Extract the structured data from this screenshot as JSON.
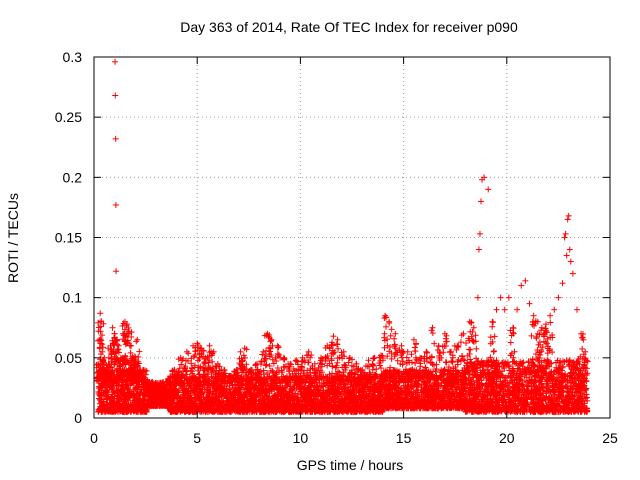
{
  "chart_data": {
    "type": "scatter",
    "title": "Day 363 of 2014, Rate Of TEC Index for receiver p090",
    "xlabel": "GPS time / hours",
    "ylabel": "ROTI / TECUs",
    "xlim": [
      0,
      25
    ],
    "ylim": [
      0,
      0.3
    ],
    "xticks": [
      0,
      5,
      10,
      15,
      20,
      25
    ],
    "yticks": [
      0,
      0.05,
      0.1,
      0.15,
      0.2,
      0.25,
      0.3
    ],
    "xtick_labels": [
      "0",
      "5",
      "10",
      "15",
      "20",
      "25"
    ],
    "ytick_labels": [
      "0",
      "0.05",
      "0.1",
      "0.15",
      "0.2",
      "0.25",
      "0.3"
    ],
    "grid": true,
    "marker": "+",
    "color": "#ff0000",
    "series": [
      {
        "name": "ROTI",
        "x": [
          0.2,
          0.3,
          0.35,
          0.4,
          0.5,
          0.6,
          0.7,
          0.8,
          0.9,
          1.0,
          1.02,
          1.03,
          1.05,
          1.06,
          1.07,
          1.1,
          1.2,
          1.3,
          1.4,
          1.5,
          1.6,
          1.7,
          1.8,
          1.9,
          2.0,
          2.1,
          2.2,
          2.4,
          2.6,
          2.8,
          3.0,
          3.3,
          3.6,
          3.9,
          4.2,
          4.5,
          4.8,
          5.0,
          5.2,
          5.4,
          5.6,
          5.8,
          6.0,
          6.3,
          6.6,
          6.9,
          7.1,
          7.3,
          7.6,
          7.9,
          8.2,
          8.4,
          8.6,
          8.9,
          9.2,
          9.5,
          9.8,
          10.1,
          10.4,
          10.7,
          11.0,
          11.3,
          11.6,
          11.8,
          12.1,
          12.4,
          12.7,
          13.0,
          13.3,
          13.6,
          13.9,
          14.1,
          14.3,
          14.6,
          14.9,
          15.2,
          15.5,
          15.8,
          16.1,
          16.4,
          16.7,
          17.0,
          17.3,
          17.6,
          17.9,
          18.2,
          18.4,
          18.6,
          18.65,
          18.7,
          18.75,
          18.8,
          18.9,
          19.1,
          19.3,
          19.5,
          19.7,
          19.9,
          20.1,
          20.3,
          20.5,
          20.7,
          20.9,
          21.1,
          21.3,
          21.5,
          21.7,
          21.9,
          22.1,
          22.3,
          22.5,
          22.7,
          22.8,
          22.85,
          22.9,
          22.95,
          23.0,
          23.05,
          23.1,
          23.2,
          23.4,
          23.6,
          23.8
        ],
        "y": [
          0.045,
          0.087,
          0.08,
          0.055,
          0.05,
          0.04,
          0.045,
          0.06,
          0.075,
          0.07,
          0.296,
          0.268,
          0.232,
          0.177,
          0.122,
          0.065,
          0.06,
          0.05,
          0.07,
          0.08,
          0.078,
          0.072,
          0.06,
          0.05,
          0.045,
          0.065,
          0.04,
          0.03,
          0.025,
          0.022,
          0.02,
          0.024,
          0.03,
          0.04,
          0.05,
          0.055,
          0.06,
          0.062,
          0.058,
          0.05,
          0.06,
          0.055,
          0.045,
          0.04,
          0.035,
          0.04,
          0.055,
          0.058,
          0.04,
          0.045,
          0.055,
          0.07,
          0.065,
          0.06,
          0.05,
          0.045,
          0.048,
          0.05,
          0.055,
          0.045,
          0.05,
          0.06,
          0.068,
          0.065,
          0.055,
          0.05,
          0.045,
          0.04,
          0.048,
          0.05,
          0.052,
          0.085,
          0.08,
          0.07,
          0.06,
          0.055,
          0.065,
          0.05,
          0.055,
          0.075,
          0.06,
          0.07,
          0.055,
          0.06,
          0.07,
          0.08,
          0.075,
          0.1,
          0.14,
          0.153,
          0.18,
          0.198,
          0.2,
          0.19,
          0.08,
          0.09,
          0.1,
          0.09,
          0.1,
          0.075,
          0.09,
          0.11,
          0.114,
          0.095,
          0.085,
          0.08,
          0.075,
          0.078,
          0.085,
          0.09,
          0.1,
          0.112,
          0.15,
          0.153,
          0.135,
          0.165,
          0.168,
          0.14,
          0.13,
          0.12,
          0.09,
          0.07,
          0.055
        ]
      }
    ],
    "noise_floor": {
      "segments": [
        {
          "x0": 0.2,
          "x1": 2.6,
          "ymin": 0.005,
          "ymax": 0.04
        },
        {
          "x0": 2.6,
          "x1": 3.6,
          "ymin": 0.01,
          "ymax": 0.028
        },
        {
          "x0": 3.6,
          "x1": 14.0,
          "ymin": 0.005,
          "ymax": 0.035
        },
        {
          "x0": 14.0,
          "x1": 18.0,
          "ymin": 0.008,
          "ymax": 0.04
        },
        {
          "x0": 18.0,
          "x1": 23.9,
          "ymin": 0.005,
          "ymax": 0.048
        }
      ]
    }
  }
}
